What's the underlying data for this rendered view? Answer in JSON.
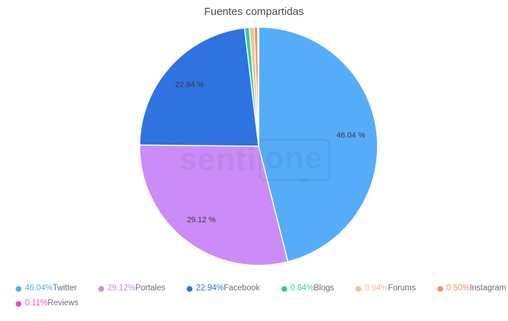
{
  "watermark": {
    "part1": "senti",
    "part2": "one"
  },
  "chart_data": {
    "type": "pie",
    "title": "Fuentes compartidas",
    "unit": "%",
    "legend_position": "bottom",
    "direction": "clockwise",
    "start_angle_deg": 0,
    "slices": [
      {
        "label": "Twitter",
        "value": 46.04,
        "pct_label": "46.04%",
        "inner_label": "46.04 %",
        "color": "#55adf9"
      },
      {
        "label": "Portales",
        "value": 29.12,
        "pct_label": "29.12%",
        "inner_label": "29.12 %",
        "color": "#cb8cf7"
      },
      {
        "label": "Facebook",
        "value": 22.94,
        "pct_label": "22.94%",
        "inner_label": "22.94 %",
        "color": "#2f73e0"
      },
      {
        "label": "Blogs",
        "value": 0.64,
        "pct_label": "0.64%",
        "inner_label": null,
        "color": "#30cba6"
      },
      {
        "label": "Forums",
        "value": 0.64,
        "pct_label": "0.64%",
        "inner_label": null,
        "color": "#fbbd92"
      },
      {
        "label": "Instagram",
        "value": 0.5,
        "pct_label": "0.50%",
        "inner_label": null,
        "color": "#f9935a"
      },
      {
        "label": "Reviews",
        "value": 0.11,
        "pct_label": "0.11%",
        "inner_label": null,
        "color": "#f74fb6"
      }
    ]
  }
}
